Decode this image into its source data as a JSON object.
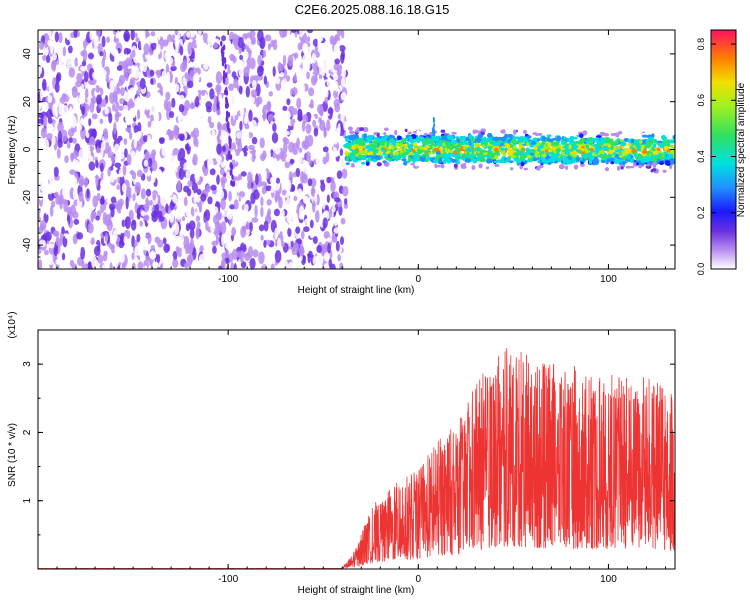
{
  "title": "C2E6.2025.088.16.18.G15",
  "chart_data": [
    {
      "type": "heatmap",
      "xlabel": "Height of straight line (km)",
      "ylabel": "Frequency (Hz)",
      "xlim": [
        -200,
        135
      ],
      "ylim": [
        -50,
        50
      ],
      "x_ticks": [
        -100,
        0,
        100
      ],
      "y_ticks": [
        -40,
        -20,
        0,
        20,
        40
      ],
      "colorbar": {
        "label": "Normalized spectral amplitude",
        "range": [
          0.0,
          0.85
        ],
        "ticks": [
          "0.0",
          "0.2",
          "0.4",
          "0.6",
          "0.8"
        ]
      },
      "regions": [
        {
          "name": "noise",
          "x_range": [
            -200,
            -38
          ],
          "freq_range": [
            -50,
            50
          ],
          "amplitude": [
            0.05,
            0.2
          ]
        },
        {
          "name": "signal-band",
          "x_range": [
            -38,
            135
          ],
          "freq_center": 0,
          "freq_halfwidth": 5,
          "amplitude": [
            0.2,
            0.8
          ]
        }
      ]
    },
    {
      "type": "line",
      "xlabel": "Height of straight line (km)",
      "ylabel": "SNR (10 * v/v)",
      "y_multiplier": "(x10⁴)",
      "xlim": [
        -200,
        135
      ],
      "ylim": [
        0,
        3.5
      ],
      "x_ticks": [
        -100,
        0,
        100
      ],
      "y_ticks": [
        1,
        2,
        3
      ],
      "series_color": "#ee3333",
      "envelope": {
        "x": [
          -200,
          -40,
          -32,
          -25,
          -15,
          0,
          10,
          20,
          30,
          40,
          50,
          60,
          70,
          80,
          90,
          100,
          110,
          120,
          130,
          135
        ],
        "y": [
          0.01,
          0.01,
          0.35,
          0.9,
          1.2,
          1.45,
          1.9,
          2.1,
          2.7,
          3.1,
          3.3,
          3.1,
          3.0,
          3.0,
          2.9,
          2.9,
          2.9,
          2.8,
          2.7,
          2.6
        ]
      }
    }
  ]
}
